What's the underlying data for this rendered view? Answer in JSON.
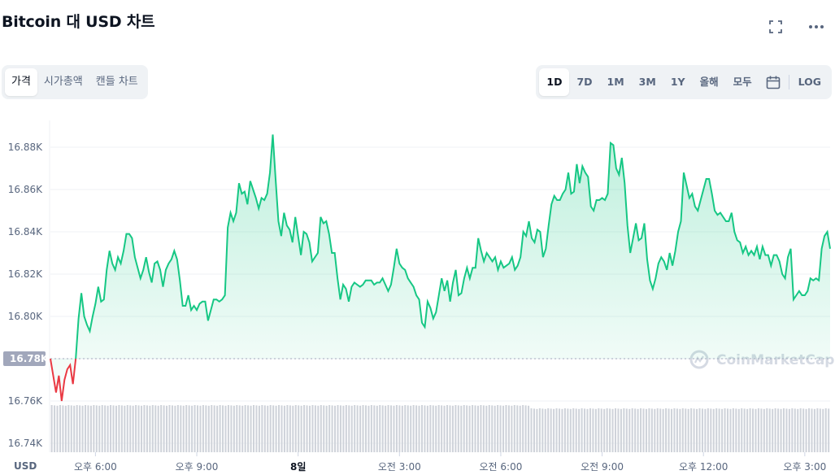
{
  "header": {
    "title": "Bitcoin 대 USD 차트"
  },
  "toolbar": {
    "icons": [
      "fullscreen-icon",
      "more-icon"
    ]
  },
  "view_tabs": [
    {
      "label": "가격",
      "active": true
    },
    {
      "label": "시가총액",
      "active": false
    },
    {
      "label": "캔들 차트",
      "active": false
    }
  ],
  "range_tabs": [
    {
      "label": "1D",
      "active": true
    },
    {
      "label": "7D",
      "active": false
    },
    {
      "label": "1M",
      "active": false
    },
    {
      "label": "3M",
      "active": false
    },
    {
      "label": "1Y",
      "active": false
    },
    {
      "label": "올해",
      "active": false
    },
    {
      "label": "모두",
      "active": false
    }
  ],
  "calendar_icon": "calendar-icon",
  "log_label": "LOG",
  "colors": {
    "up": "#16c784",
    "down": "#ea3943",
    "volume": "#cfd3da",
    "ref_badge": "#a1a7bb"
  },
  "chart_data": {
    "type": "line",
    "title": "",
    "xlabel": "",
    "ylabel": "",
    "currency_label": "USD",
    "ylim": [
      16735,
      16895
    ],
    "y_ticks": [
      16740,
      16760,
      16780,
      16800,
      16820,
      16840,
      16860,
      16880
    ],
    "y_tick_labels": [
      "16.74K",
      "16.76K",
      "16.78K",
      "16.80K",
      "16.82K",
      "16.84K",
      "16.86K",
      "16.88K"
    ],
    "x_tick_labels": [
      "오후 6:00",
      "오후 9:00",
      "8일",
      "오전 3:00",
      "오전 6:00",
      "오전 9:00",
      "오후 12:00",
      "오후 3:00"
    ],
    "x_tick_indices": [
      16,
      52,
      88,
      124,
      160,
      196,
      232,
      268
    ],
    "reference_value": 16780,
    "reference_label": "16.78K",
    "watermark": "CoinMarketCap",
    "grid": true,
    "series": [
      {
        "values": [
          16780,
          16772,
          16764,
          16772,
          16760,
          16770,
          16775,
          16777,
          16768,
          16780,
          16799,
          16811,
          16800,
          16796,
          16793,
          16800,
          16806,
          16814,
          16807,
          16808,
          16822,
          16831,
          16825,
          16822,
          16828,
          16825,
          16831,
          16839,
          16839,
          16837,
          16828,
          16823,
          16818,
          16822,
          16828,
          16821,
          16816,
          16825,
          16826,
          16822,
          16814,
          16822,
          16825,
          16827,
          16831,
          16827,
          16817,
          16805,
          16805,
          16810,
          16803,
          16805,
          16803,
          16806,
          16807,
          16807,
          16798,
          16803,
          16808,
          16808,
          16807,
          16808,
          16810,
          16842,
          16849,
          16845,
          16849,
          16863,
          16858,
          16859,
          16853,
          16864,
          16860,
          16856,
          16851,
          16856,
          16855,
          16858,
          16868,
          16886,
          16865,
          16845,
          16838,
          16849,
          16843,
          16841,
          16835,
          16847,
          16838,
          16829,
          16840,
          16839,
          16835,
          16826,
          16828,
          16830,
          16847,
          16844,
          16845,
          16839,
          16830,
          16830,
          16818,
          16808,
          16815,
          16813,
          16807,
          16814,
          16816,
          16815,
          16814,
          16815,
          16817,
          16817,
          16817,
          16815,
          16816,
          16816,
          16818,
          16815,
          16812,
          16815,
          16823,
          16832,
          16825,
          16823,
          16822,
          16818,
          16816,
          16814,
          16810,
          16808,
          16797,
          16795,
          16807,
          16804,
          16799,
          16802,
          16810,
          16818,
          16812,
          16817,
          16807,
          16816,
          16822,
          16810,
          16811,
          16818,
          16823,
          16818,
          16823,
          16823,
          16837,
          16831,
          16826,
          16830,
          16828,
          16826,
          16828,
          16822,
          16826,
          16823,
          16824,
          16825,
          16828,
          16822,
          16824,
          16828,
          16840,
          16838,
          16845,
          16837,
          16835,
          16841,
          16840,
          16828,
          16832,
          16843,
          16853,
          16857,
          16855,
          16855,
          16858,
          16860,
          16868,
          16858,
          16859,
          16872,
          16863,
          16871,
          16868,
          16866,
          16852,
          16850,
          16855,
          16855,
          16856,
          16855,
          16858,
          16882,
          16881,
          16870,
          16867,
          16875,
          16863,
          16843,
          16830,
          16837,
          16844,
          16836,
          16837,
          16844,
          16827,
          16817,
          16813,
          16818,
          16825,
          16828,
          16826,
          16822,
          16830,
          16824,
          16831,
          16840,
          16845,
          16868,
          16862,
          16856,
          16858,
          16852,
          16850,
          16855,
          16860,
          16865,
          16865,
          16858,
          16850,
          16848,
          16849,
          16847,
          16845,
          16845,
          16849,
          16840,
          16836,
          16835,
          16830,
          16833,
          16829,
          16831,
          16829,
          16833,
          16827,
          16833,
          16829,
          16829,
          16824,
          16829,
          16829,
          16826,
          16820,
          16818,
          16828,
          16832,
          16808,
          16810,
          16812,
          16810,
          16810,
          16812,
          16818,
          16817,
          16818,
          16817,
          16832,
          16838,
          16840,
          16832
        ]
      }
    ]
  }
}
